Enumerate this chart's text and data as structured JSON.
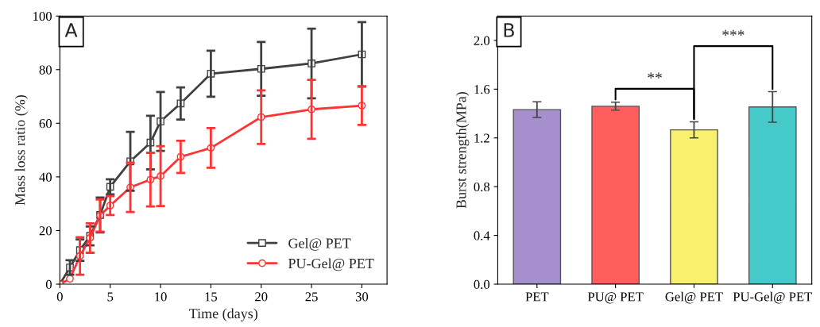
{
  "chart_data": [
    {
      "type": "line",
      "title": "A",
      "xlabel": "Time (days)",
      "ylabel": "Mass loss ratio (%)",
      "x": [
        0,
        1,
        2,
        3,
        4,
        5,
        7,
        9,
        10,
        12,
        15,
        20,
        25,
        30
      ],
      "series": [
        {
          "name": "Gel@ PET",
          "color": "#404040",
          "marker": "square",
          "values": [
            0,
            6.2,
            12.7,
            18,
            25.8,
            36.3,
            45.8,
            52.8,
            60.7,
            67.4,
            78.5,
            80.3,
            82.3,
            85.7
          ],
          "errors": [
            null,
            2.7,
            4,
            3.5,
            6.5,
            2.8,
            11,
            10,
            11,
            6,
            8.6,
            10,
            13,
            12
          ]
        },
        {
          "name": "PU-Gel@ PET",
          "color": "#ff3333",
          "marker": "circle",
          "values": [
            0,
            2.0,
            10.5,
            17.2,
            25.6,
            29.3,
            36.1,
            39,
            40.3,
            47.5,
            50.8,
            62.3,
            65.2,
            66.6
          ],
          "errors": [
            null,
            null,
            7,
            5.5,
            6,
            3.5,
            9.2,
            10,
            11.2,
            6,
            7.4,
            10,
            11,
            7.2
          ]
        }
      ],
      "xlim": [
        0,
        32.5
      ],
      "xticks": [
        0,
        5,
        10,
        15,
        20,
        25,
        30
      ],
      "ylim": [
        0,
        100
      ],
      "yticks": [
        0,
        20,
        40,
        60,
        80,
        100
      ],
      "legend": "bottom right",
      "grid": false
    },
    {
      "type": "bar",
      "title": "B",
      "ylabel": "Burst strength(MPa)",
      "categories": [
        "PET",
        "PU@ PET",
        "Gel@ PET",
        "PU-Gel@ PET"
      ],
      "values": [
        1.432,
        1.46,
        1.266,
        1.454
      ],
      "errors": [
        0.064,
        0.033,
        0.066,
        0.125
      ],
      "colors": [
        "#a58fcc",
        "#ff5e5e",
        "#f9f070",
        "#45c9c9"
      ],
      "ylim": [
        0,
        2.2
      ],
      "yticks": [
        {
          "value": 0,
          "label": "0.0"
        },
        {
          "value": 0.4,
          "label": "0.4"
        },
        {
          "value": 0.8,
          "label": "0.8"
        },
        {
          "value": 1.2,
          "label": "1.2"
        },
        {
          "value": 1.6,
          "label": "1.6"
        },
        {
          "value": 2.0,
          "label": "2.0"
        }
      ],
      "annotations": [
        "**",
        "***"
      ],
      "grid": false
    }
  ]
}
